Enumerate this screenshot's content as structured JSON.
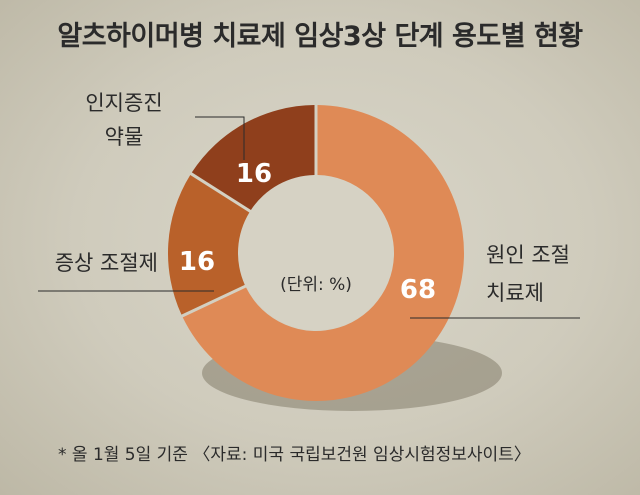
{
  "title": "알츠하이머병 치료제 임상3상 단계 용도별 현황",
  "footnote": "* 올 1월 5일 기준 〈자료: 미국 국립보건원 임상시험정보사이트〉",
  "chart_data": {
    "type": "pie",
    "donut": true,
    "center_label": "(단위: %)",
    "slices": [
      {
        "label": [
          "원인 조절",
          "치료제"
        ],
        "value": 68,
        "color": "#df8a56"
      },
      {
        "label": [
          "증상 조절제"
        ],
        "value": 16,
        "color": "#b9612a"
      },
      {
        "label": [
          "인지증진",
          "약물"
        ],
        "value": 16,
        "color": "#8f3f1c"
      }
    ]
  }
}
